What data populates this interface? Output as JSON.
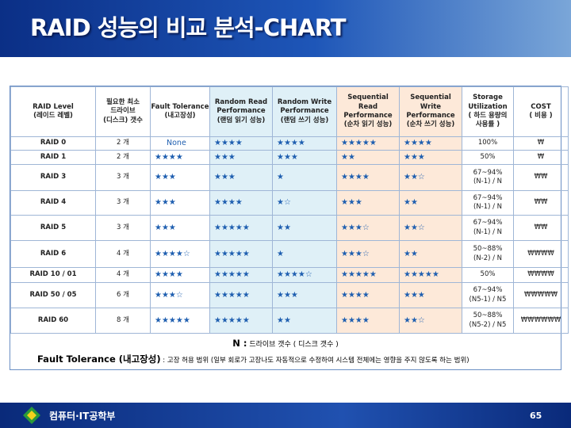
{
  "header": {
    "title": "RAID 성능의 비교 분석-CHART"
  },
  "table": {
    "columns": [
      "RAID Level\n(레이드 레벨)",
      "필요한 최소\n드라이브\n(디스크) 갯수",
      "Fault Tolerance\n(내고장성)",
      "Random Read\nPerformance\n(랜덤 읽기 성능)",
      "Random Write\nPerformance\n(랜덤 쓰기 성능)",
      "Sequential\nRead\nPerformance\n(순차 읽기 성능)",
      "Sequential\nWrite\nPerformance\n(순차 쓰기 성능)",
      "Storage\nUtilization\n( 하드 용량의\n사용률 )",
      "COST\n( 비용 )"
    ],
    "rows": [
      [
        "RAID 0",
        "2 개",
        "None",
        "★★★★",
        "★★★★",
        "★★★★★",
        "★★★★",
        "100%",
        "₩"
      ],
      [
        "RAID 1",
        "2 개",
        "★★★★",
        "★★★",
        "★★★",
        "★★",
        "★★★",
        "50%",
        "₩"
      ],
      [
        "RAID 3",
        "3 개",
        "★★★",
        "★★★",
        "★",
        "★★★★",
        "★★☆",
        "67~94%\n(N-1) / N",
        "₩₩"
      ],
      [
        "RAID 4",
        "3 개",
        "★★★",
        "★★★★",
        "★☆",
        "★★★",
        "★★",
        "67~94%\n(N-1) / N",
        "₩₩"
      ],
      [
        "RAID 5",
        "3 개",
        "★★★",
        "★★★★★",
        "★★",
        "★★★☆",
        "★★☆",
        "67~94%\n(N-1) / N",
        "₩₩"
      ],
      [
        "RAID 6",
        "4 개",
        "★★★★☆",
        "★★★★★",
        "★",
        "★★★☆",
        "★★",
        "50~88%\n(N-2) / N",
        "₩₩₩₩"
      ],
      [
        "RAID 10 / 01",
        "4 개",
        "★★★★",
        "★★★★★",
        "★★★★☆",
        "★★★★★",
        "★★★★★",
        "50%",
        "₩₩₩₩"
      ],
      [
        "RAID 50 / 05",
        "6 개",
        "★★★☆",
        "★★★★★",
        "★★★",
        "★★★★",
        "★★★",
        "67~94%\n(N5-1) / N5",
        "₩₩₩₩₩"
      ],
      [
        "RAID 60",
        "8 개",
        "★★★★★",
        "★★★★★",
        "★★",
        "★★★★",
        "★★☆",
        "50~88%\n(N5-2) / N5",
        "₩₩₩₩₩₩"
      ]
    ]
  },
  "notes": {
    "n_key": "N :",
    "n_text": " 드라이브 갯수 ( 디스크 갯수 )",
    "ft_key": "Fault Tolerance (내고장성)",
    "ft_text": " : 고장 허용 범위 (일부 회로가 고장나도 자동적으로 수정하여 시스템 전체에는 영향을 주지 않도록 하는 범위)"
  },
  "footer": {
    "department": "컴퓨터·IT공학부",
    "page": "65"
  }
}
